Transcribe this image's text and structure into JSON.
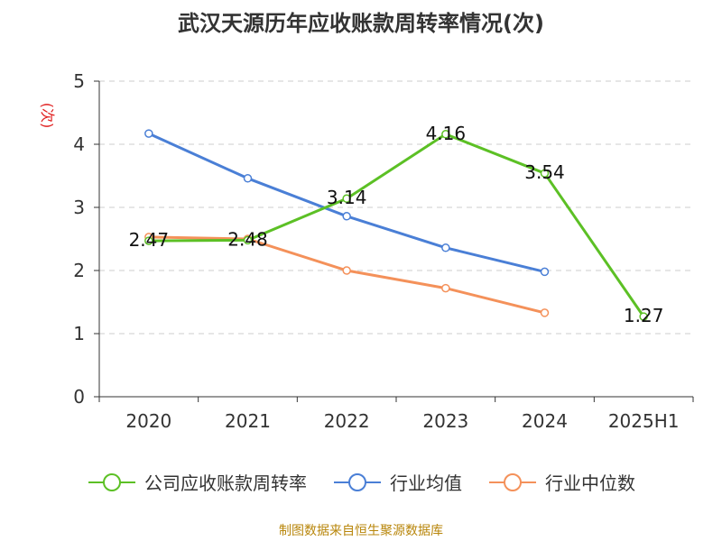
{
  "chart_data": {
    "type": "line",
    "title": "武汉天源历年应收账款周转率情况(次)",
    "ylabel": "(次)",
    "xlabel": "",
    "categories": [
      "2020",
      "2021",
      "2022",
      "2023",
      "2024",
      "2025H1"
    ],
    "ylim": [
      0,
      5
    ],
    "yticks": [
      "0",
      "1",
      "2",
      "3",
      "4",
      "5"
    ],
    "grid": true,
    "legend_position": "bottom",
    "series": [
      {
        "name": "公司应收账款周转率",
        "color": "#5cc025",
        "values": [
          2.47,
          2.48,
          3.14,
          4.16,
          3.54,
          1.27
        ],
        "labels": [
          "2.47",
          "2.48",
          "3.14",
          "4.16",
          "3.54",
          "1.27"
        ]
      },
      {
        "name": "行业均值",
        "color": "#4a7fd6",
        "values": [
          4.17,
          3.46,
          2.86,
          2.36,
          1.98,
          null
        ]
      },
      {
        "name": "行业中位数",
        "color": "#f4915a",
        "values": [
          2.53,
          2.5,
          2.0,
          1.72,
          1.33,
          null
        ]
      }
    ]
  },
  "source_note": "制图数据来自恒生聚源数据库",
  "colors": {
    "axis": "#333333",
    "grid": "#cccccc",
    "ylabel": "#e02020"
  }
}
